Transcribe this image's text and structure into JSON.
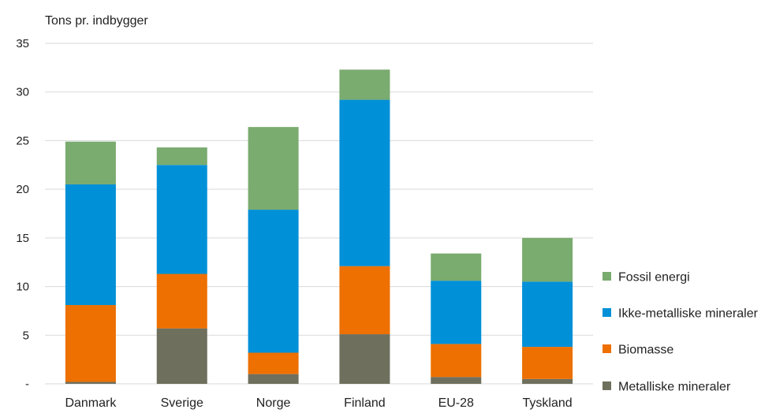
{
  "chart_data": {
    "type": "bar",
    "stacked": true,
    "ylabel": "Tons pr. indbygger",
    "ylim": [
      0,
      35
    ],
    "yticks": [
      0,
      5,
      10,
      15,
      20,
      25,
      30,
      35
    ],
    "ytick_labels": [
      "-",
      "5",
      "10",
      "15",
      "20",
      "25",
      "30",
      "35"
    ],
    "grid": true,
    "legend_position": "right",
    "categories": [
      "Danmark",
      "Sverige",
      "Norge",
      "Finland",
      "EU-28",
      "Tyskland"
    ],
    "series": [
      {
        "name": "Metalliske mineraler",
        "color": "#6f6f5e",
        "values": [
          0.2,
          5.7,
          1.0,
          5.1,
          0.7,
          0.5
        ]
      },
      {
        "name": "Biomasse",
        "color": "#ed7000",
        "values": [
          7.9,
          5.6,
          2.2,
          7.0,
          3.4,
          3.3
        ]
      },
      {
        "name": "Ikke-metalliske mineraler",
        "color": "#0090d8",
        "values": [
          12.4,
          11.2,
          14.7,
          17.1,
          6.5,
          6.7
        ]
      },
      {
        "name": "Fossil energi",
        "color": "#7aab6f",
        "values": [
          4.4,
          1.8,
          8.5,
          3.1,
          2.8,
          4.5
        ]
      }
    ],
    "legend_order": [
      "Fossil energi",
      "Ikke-metalliske mineraler",
      "Biomasse",
      "Metalliske mineraler"
    ]
  }
}
